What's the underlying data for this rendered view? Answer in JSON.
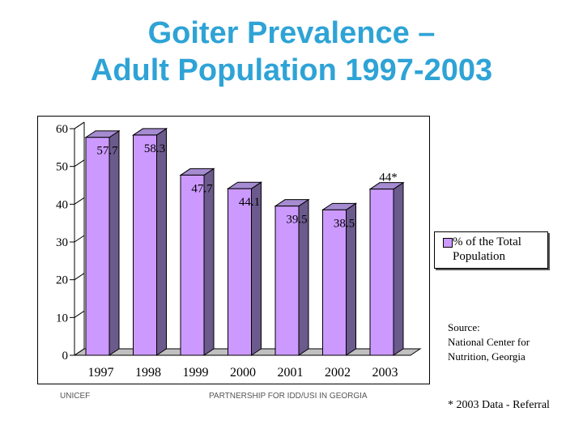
{
  "slide": {
    "title_line1": "Goiter Prevalence –",
    "title_line2": "Adult Population 1997-2003",
    "source_line1": "Source:",
    "source_line2": "National Center for",
    "source_line3": "Nutrition, Georgia",
    "footer_left": "UNICEF",
    "footer_center": "PARTNERSHIP FOR IDD/USI IN GEORGIA",
    "footnote": "* 2003 Data - Referral"
  },
  "chart_data": {
    "type": "bar",
    "title": "",
    "xlabel": "",
    "ylabel": "",
    "categories": [
      "1997",
      "1998",
      "1999",
      "2000",
      "2001",
      "2002",
      "2003"
    ],
    "series": [
      {
        "name": "% of the Total Population",
        "values": [
          57.7,
          58.3,
          47.7,
          44.1,
          39.5,
          38.5,
          44
        ],
        "labels": [
          "57.7",
          "58.3",
          "47.7",
          "44.1",
          "39.5",
          "38.5",
          "44*"
        ]
      }
    ],
    "ylim": [
      0,
      60
    ],
    "yticks": [
      "0",
      "10",
      "20",
      "30",
      "40",
      "50",
      "60"
    ],
    "grid": false,
    "legend_position": "right",
    "colors": {
      "bar_front": "#cc99ff",
      "bar_side": "#6b5a8c",
      "bar_top": "#a58bd0",
      "floor": "#c0c0c0"
    }
  }
}
